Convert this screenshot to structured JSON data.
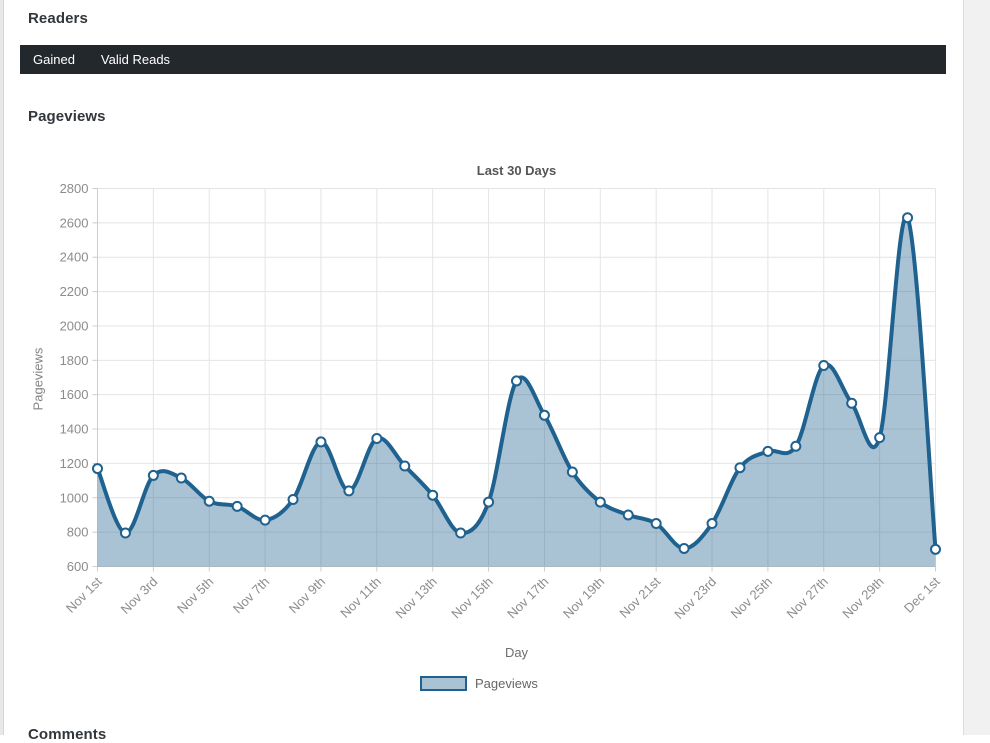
{
  "page": {
    "section_readers": "Readers",
    "section_pageviews": "Pageviews",
    "section_comments": "Comments"
  },
  "tabs": [
    {
      "label": "Gained"
    },
    {
      "label": "Valid Reads"
    }
  ],
  "chart_data": {
    "type": "area",
    "title": "Last 30 Days",
    "xlabel": "Day",
    "ylabel": "Pageviews",
    "legend_label": "Pageviews",
    "legend_position": "bottom",
    "grid": true,
    "x": [
      "Nov 1st",
      "Nov 2nd",
      "Nov 3rd",
      "Nov 4th",
      "Nov 5th",
      "Nov 6th",
      "Nov 7th",
      "Nov 8th",
      "Nov 9th",
      "Nov 10th",
      "Nov 11th",
      "Nov 12th",
      "Nov 13th",
      "Nov 14th",
      "Nov 15th",
      "Nov 16th",
      "Nov 17th",
      "Nov 18th",
      "Nov 19th",
      "Nov 20th",
      "Nov 21st",
      "Nov 22nd",
      "Nov 23rd",
      "Nov 24th",
      "Nov 25th",
      "Nov 26th",
      "Nov 27th",
      "Nov 28th",
      "Nov 29th",
      "Nov 30th",
      "Dec 1st"
    ],
    "x_label_every": 2,
    "series": [
      {
        "name": "Pageviews",
        "values": [
          1170,
          795,
          1130,
          1115,
          980,
          950,
          870,
          990,
          1325,
          1040,
          1345,
          1185,
          1015,
          795,
          975,
          1680,
          1480,
          1150,
          975,
          900,
          850,
          705,
          850,
          1175,
          1270,
          1300,
          1770,
          1550,
          1350,
          2630,
          700
        ]
      }
    ],
    "ylim": [
      600,
      2800
    ],
    "ytick_step": 200,
    "yticks": [
      600,
      800,
      1000,
      1200,
      1400,
      1600,
      1800,
      2000,
      2200,
      2400,
      2600,
      2800
    ],
    "colors": {
      "line": "#1f618f",
      "fill": "rgba(31,97,143,0.38)",
      "marker_fill": "#ffffff",
      "grid": "#e4e4e4",
      "axis": "#cccccc",
      "tick_text": "#8c8c8c",
      "title_text": "#555555",
      "tabbar_bg": "#23282d",
      "tab_text": "#ffffff",
      "heading_text": "#32373c"
    }
  }
}
